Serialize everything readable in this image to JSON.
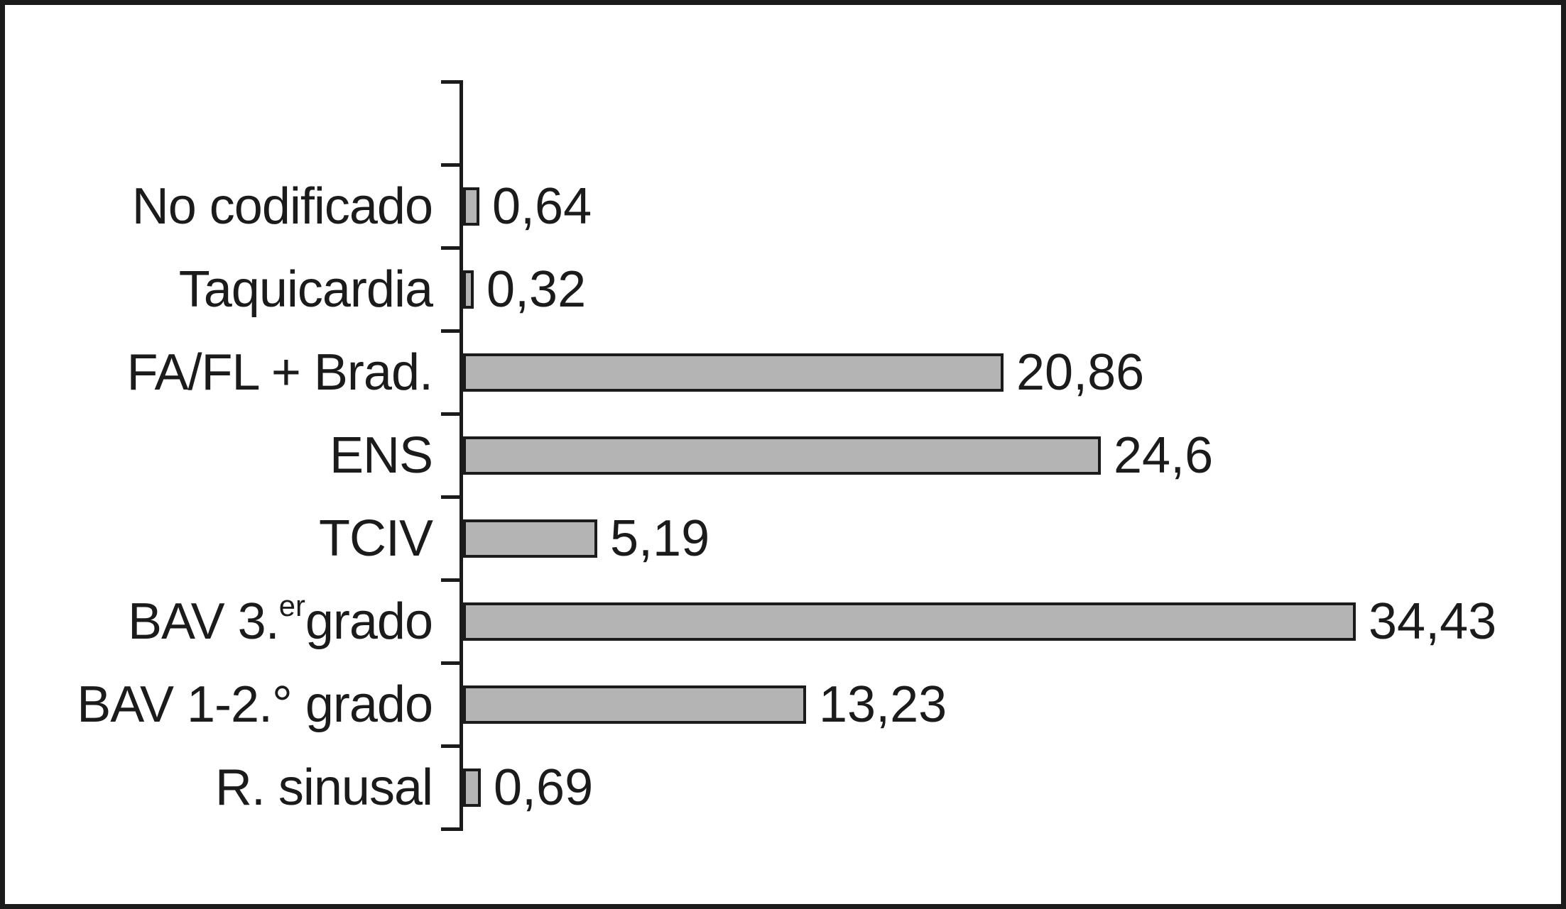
{
  "chart_data": {
    "type": "bar",
    "orientation": "horizontal",
    "title": "",
    "xlabel": "",
    "ylabel": "",
    "grid": false,
    "legend": null,
    "xlim": [
      0,
      40
    ],
    "categories": [
      "No codificado",
      "Taquicardia",
      "FA/FL + Brad.",
      "ENS",
      "TCIV",
      "BAV 3.er grado",
      "BAV 1-2.° grado",
      "R. sinusal"
    ],
    "category_parts": [
      {
        "pre": "No codificado",
        "sup": "",
        "post": ""
      },
      {
        "pre": "Taquicardia",
        "sup": "",
        "post": ""
      },
      {
        "pre": "FA/FL + Brad.",
        "sup": "",
        "post": ""
      },
      {
        "pre": "ENS",
        "sup": "",
        "post": ""
      },
      {
        "pre": "TCIV",
        "sup": "",
        "post": ""
      },
      {
        "pre": "BAV 3.",
        "sup": "er",
        "post": " grado"
      },
      {
        "pre": "BAV 1-2.° grado",
        "sup": "",
        "post": ""
      },
      {
        "pre": "R. sinusal",
        "sup": "",
        "post": ""
      }
    ],
    "values": [
      0.64,
      0.32,
      20.86,
      24.6,
      5.19,
      34.43,
      13.23,
      0.69
    ],
    "value_labels": [
      "0,64",
      "0,32",
      "20,86",
      "24,6",
      "5,19",
      "34,43",
      "13,23",
      "0,69"
    ],
    "layout_hints": {
      "empty_top_band": true,
      "value_labels_position": "right-of-bar"
    }
  },
  "colors": {
    "bar_fill": "#b4b4b4",
    "bar_border": "#1b1b1b",
    "axis": "#1b1b1b",
    "frame_border": "#1b1b1b",
    "background": "#ffffff",
    "text": "#1b1b1b"
  }
}
